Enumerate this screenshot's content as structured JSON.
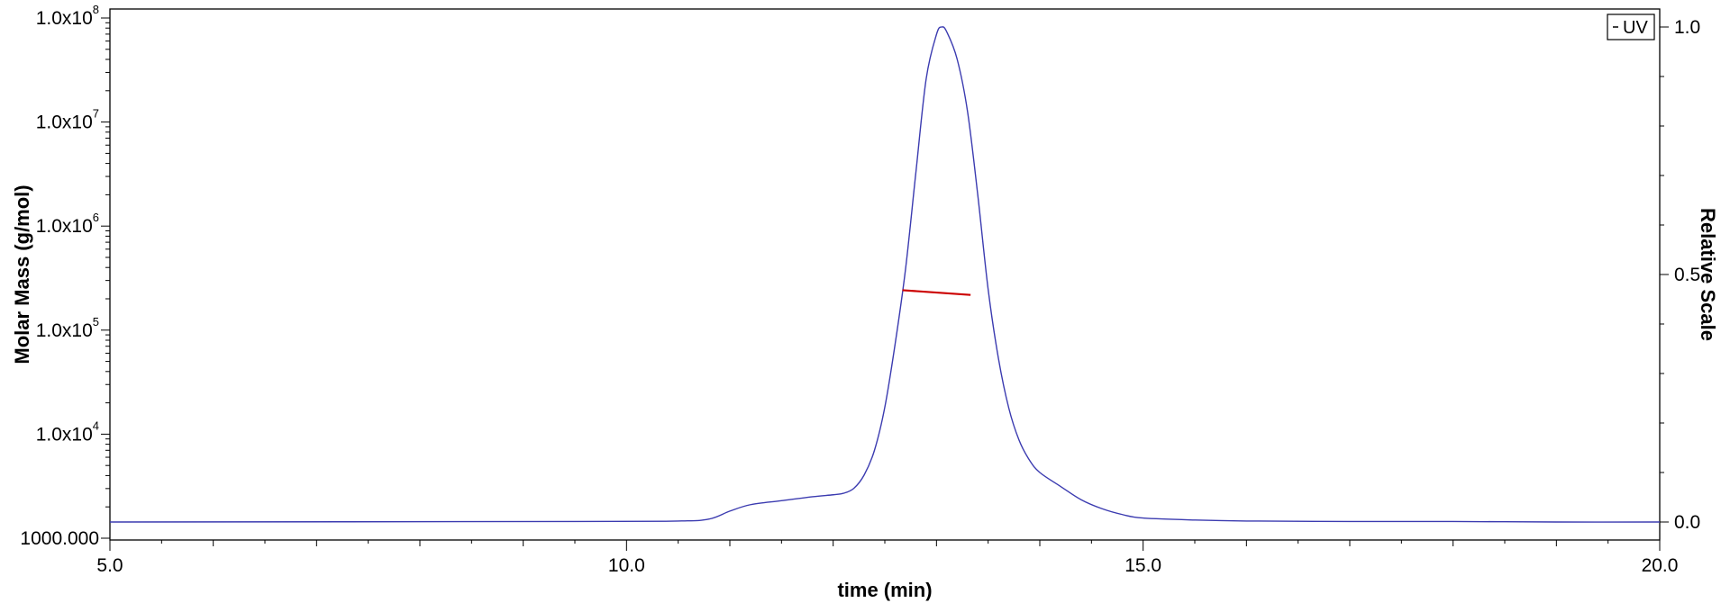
{
  "chart_data": {
    "type": "line",
    "title": "",
    "xlabel": "time (min)",
    "ylabel_left": "Molar Mass (g/mol)",
    "ylabel_right": "Relative Scale",
    "xlim": [
      5.0,
      20.0
    ],
    "ylim_left": [
      1000,
      100000000
    ],
    "ylim_right": [
      0.0,
      1.0
    ],
    "y_scale_left": "log",
    "grid": false,
    "legend": {
      "placement": "top-right",
      "entries": [
        "UV"
      ]
    },
    "x_ticks": [
      {
        "value": 5.0,
        "label": "5.0"
      },
      {
        "value": 10.0,
        "label": "10.0"
      },
      {
        "value": 15.0,
        "label": "15.0"
      },
      {
        "value": 20.0,
        "label": "20.0"
      }
    ],
    "y_left_ticks": [
      {
        "value": 1000,
        "label": "1000.000",
        "base": "",
        "exp": ""
      },
      {
        "value": 10000,
        "label": "",
        "base": "1.0x10",
        "exp": "4"
      },
      {
        "value": 100000,
        "label": "",
        "base": "1.0x10",
        "exp": "5"
      },
      {
        "value": 1000000,
        "label": "",
        "base": "1.0x10",
        "exp": "6"
      },
      {
        "value": 10000000,
        "label": "",
        "base": "1.0x10",
        "exp": "7"
      },
      {
        "value": 100000000,
        "label": "",
        "base": "1.0x10",
        "exp": "8"
      }
    ],
    "y_right_ticks": [
      {
        "value": 0.0,
        "label": "0.0"
      },
      {
        "value": 0.5,
        "label": "0.5"
      },
      {
        "value": 1.0,
        "label": "1.0"
      }
    ],
    "series": [
      {
        "name": "UV",
        "axis": "right",
        "color": "#3b3bb0",
        "x": [
          5.0,
          9.5,
          10.5,
          10.8,
          11.0,
          11.2,
          11.5,
          11.8,
          12.0,
          12.1,
          12.2,
          12.3,
          12.4,
          12.5,
          12.6,
          12.7,
          12.8,
          12.9,
          13.0,
          13.05,
          13.1,
          13.2,
          13.3,
          13.4,
          13.5,
          13.6,
          13.7,
          13.8,
          13.9,
          14.0,
          14.2,
          14.4,
          14.6,
          14.8,
          15.0,
          15.5,
          16.0,
          17.0,
          18.0,
          19.0,
          20.0
        ],
        "y": [
          0.0,
          0.001,
          0.002,
          0.006,
          0.022,
          0.035,
          0.043,
          0.051,
          0.055,
          0.058,
          0.068,
          0.095,
          0.145,
          0.232,
          0.36,
          0.51,
          0.705,
          0.895,
          0.985,
          1.0,
          0.99,
          0.935,
          0.83,
          0.66,
          0.47,
          0.33,
          0.23,
          0.165,
          0.125,
          0.1,
          0.072,
          0.045,
          0.027,
          0.015,
          0.008,
          0.004,
          0.002,
          0.001,
          0.001,
          0.0,
          0.0
        ]
      },
      {
        "name": "",
        "axis": "left",
        "color": "#cc0000",
        "x": [
          12.67,
          13.33
        ],
        "y": [
          242000,
          218000
        ]
      }
    ]
  }
}
